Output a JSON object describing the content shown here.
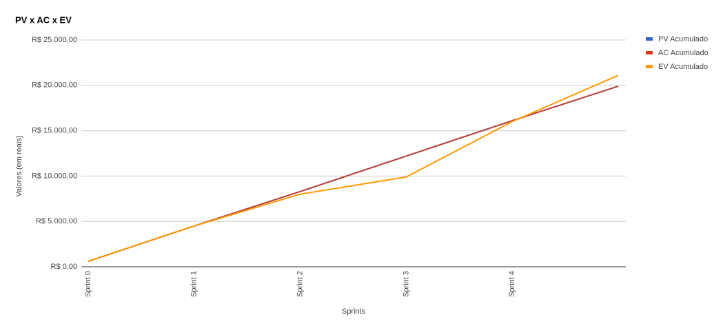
{
  "chart_data": {
    "type": "line",
    "title": "PV x AC x EV",
    "x_label": "Sprints",
    "y_label": "Valores (em reais)",
    "categories": [
      "Sprint 0",
      "Sprint 1",
      "Sprint 2",
      "Sprint 3",
      "Sprint 4",
      null
    ],
    "series": [
      {
        "name": "PV Acumulado",
        "color": "#3366cc",
        "values": [
          600,
          4500,
          8300,
          12200,
          16100,
          19900
        ]
      },
      {
        "name": "AC Acumulado",
        "color": "#dc3912",
        "values": [
          600,
          4500,
          8300,
          12200,
          16100,
          19900
        ]
      },
      {
        "name": "EV Acumulado",
        "color": "#ff9900",
        "values": [
          600,
          4500,
          8000,
          9900,
          16000,
          21100
        ]
      }
    ],
    "ylim": [
      0,
      25000
    ],
    "yticks": [
      {
        "value": 0,
        "label": "R$ 0,00"
      },
      {
        "value": 5000,
        "label": "R$ 5.000,00"
      },
      {
        "value": 10000,
        "label": "R$ 10.000,00"
      },
      {
        "value": 15000,
        "label": "R$ 15.000,00"
      },
      {
        "value": 20000,
        "label": "R$ 20.000,00"
      },
      {
        "value": 25000,
        "label": "R$ 25.000,00"
      }
    ],
    "grid": true,
    "legend": "right"
  }
}
